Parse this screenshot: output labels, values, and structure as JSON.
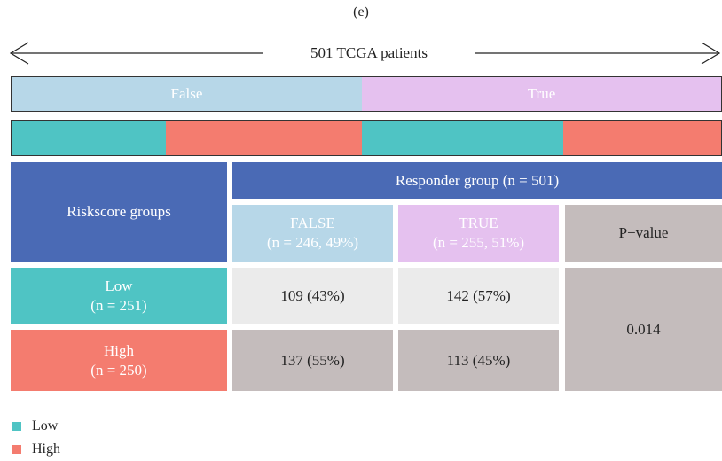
{
  "caption": "(e)",
  "cohort": "501 TCGA patients",
  "responder_bar": [
    "False",
    "True"
  ],
  "table": {
    "row_header": "Riskscore groups",
    "group_header": "Responder group (n = 501)",
    "columns": [
      {
        "label": "FALSE",
        "sub": "(n = 246, 49%)"
      },
      {
        "label": "TRUE",
        "sub": "(n = 255, 51%)"
      },
      {
        "label": "P−value"
      }
    ],
    "rows": [
      {
        "label": "Low",
        "sub": "(n = 251)",
        "cells": [
          "109 (43%)",
          "142 (57%)"
        ]
      },
      {
        "label": "High",
        "sub": "(n = 250)",
        "cells": [
          "137 (55%)",
          "113 (45%)"
        ]
      }
    ],
    "p_value": "0.014"
  },
  "legend": [
    "Low",
    "High"
  ]
}
